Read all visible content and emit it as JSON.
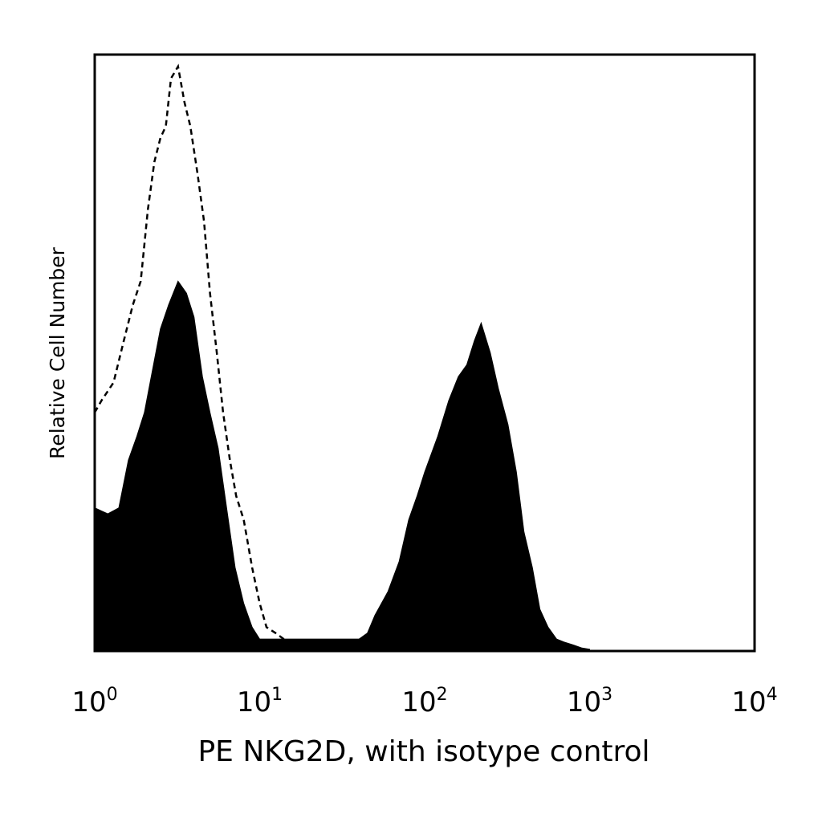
{
  "chart_data": {
    "type": "area",
    "title": "",
    "xlabel": "PE NKG2D, with isotype control",
    "ylabel": "Relative Cell Number",
    "x_scale": "log",
    "xlim": [
      1,
      10000
    ],
    "ylim": [
      0,
      100
    ],
    "grid": false,
    "x_ticks": [
      {
        "base": "10",
        "exp": "0",
        "value": 1
      },
      {
        "base": "10",
        "exp": "1",
        "value": 10
      },
      {
        "base": "10",
        "exp": "2",
        "value": 100
      },
      {
        "base": "10",
        "exp": "3",
        "value": 1000
      },
      {
        "base": "10",
        "exp": "4",
        "value": 10000
      }
    ],
    "series": [
      {
        "style": "filled",
        "color": "#000000",
        "x": [
          1.0,
          1.2,
          1.4,
          1.6,
          1.8,
          2.0,
          2.2,
          2.5,
          2.8,
          3.2,
          3.6,
          4.0,
          4.5,
          5.0,
          5.6,
          6.3,
          7.1,
          8.0,
          9.0,
          10.0,
          12.0,
          15.0,
          20.0,
          30.0,
          40.0,
          45.0,
          50.0,
          60.0,
          70.0,
          80.0,
          90.0,
          100.0,
          120.0,
          140.0,
          160.0,
          180.0,
          200.0,
          220.0,
          250.0,
          280.0,
          320.0,
          360.0,
          400.0,
          450.0,
          500.0,
          560.0,
          630.0,
          700.0,
          800.0,
          900.0,
          1000.0
        ],
        "y": [
          24,
          23,
          24,
          32,
          36,
          40,
          46,
          54,
          58,
          62,
          60,
          56,
          46,
          40,
          34,
          24,
          14,
          8,
          4,
          2,
          2,
          2,
          2,
          2,
          2,
          3,
          6,
          10,
          15,
          22,
          26,
          30,
          36,
          42,
          46,
          48,
          52,
          55,
          50,
          44,
          38,
          30,
          20,
          14,
          7,
          4,
          2,
          1.5,
          1,
          0.5,
          0.3
        ]
      },
      {
        "style": "dashed-outline",
        "color": "#000000",
        "x": [
          1.0,
          1.1,
          1.3,
          1.5,
          1.7,
          1.9,
          2.1,
          2.3,
          2.5,
          2.7,
          2.9,
          3.2,
          3.5,
          3.8,
          4.2,
          4.6,
          5.0,
          5.5,
          6.0,
          6.6,
          7.2,
          8.0,
          9.0,
          10.0,
          11.0,
          12.5,
          14.0,
          16.0,
          20.0
        ],
        "y": [
          40,
          42,
          45,
          52,
          58,
          62,
          74,
          82,
          86,
          88,
          96,
          98,
          92,
          88,
          80,
          72,
          60,
          50,
          40,
          32,
          26,
          22,
          14,
          8,
          4,
          3,
          2,
          1,
          0.5
        ]
      }
    ]
  }
}
